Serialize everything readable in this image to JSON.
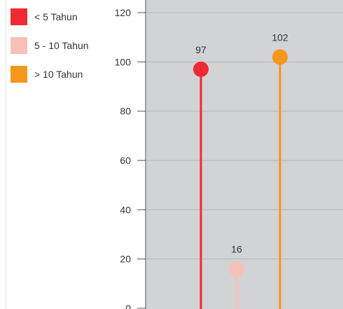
{
  "legend": [
    {
      "label": "< 5 Tahun",
      "color": "#ee2b33"
    },
    {
      "label": "5 - 10 Tahun",
      "color": "#f7c1b6"
    },
    {
      "label": "> 10 Tahun",
      "color": "#f5961d"
    }
  ],
  "chart_data": {
    "type": "lollipop",
    "categories": [
      "< 5 Tahun",
      "5 - 10 Tahun",
      "> 10 Tahun"
    ],
    "values": [
      97,
      16,
      102
    ],
    "colors": [
      "#ee2b33",
      "#f7c1b6",
      "#f5961d"
    ],
    "data_labels": [
      "97",
      "16",
      "102"
    ],
    "yticks": [
      0,
      20,
      40,
      60,
      80,
      100,
      120
    ],
    "ylim": [
      0,
      120
    ],
    "plot_background": "#d2d3d5",
    "grid": true,
    "legend_position": "top-left"
  }
}
